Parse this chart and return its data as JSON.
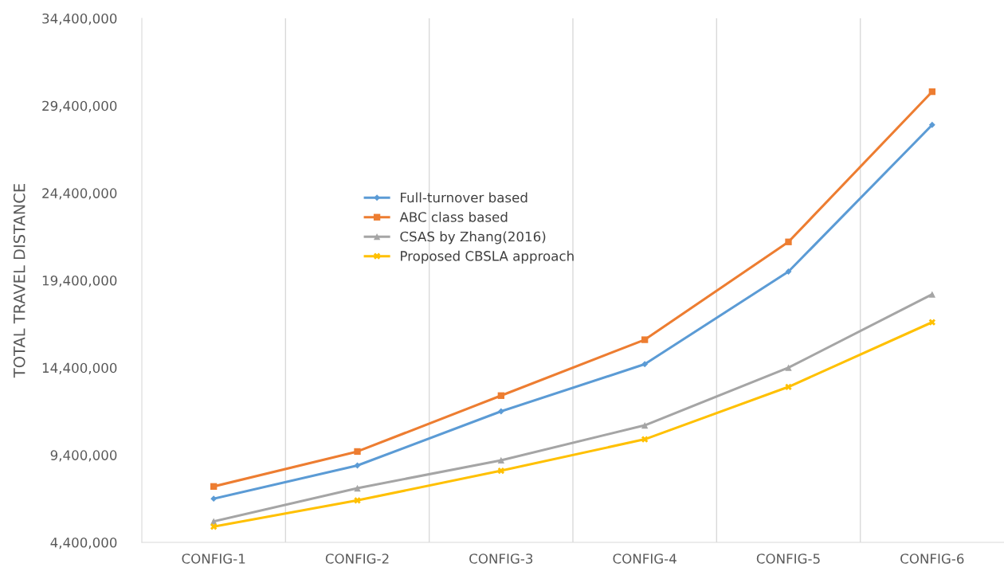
{
  "chart_data": {
    "type": "line",
    "ylabel": "TOTAL TRAVEL DISTANCE",
    "categories": [
      "CONFIG-1",
      "CONFIG-2",
      "CONFIG-3",
      "CONFIG-4",
      "CONFIG-5",
      "CONFIG-6"
    ],
    "series": [
      {
        "name": "Full-turnover based",
        "color": "#5b9bd5",
        "marker": "diamond",
        "values": [
          6900000,
          8800000,
          11900000,
          14600000,
          19900000,
          28300000
        ]
      },
      {
        "name": "ABC class based",
        "color": "#ed7d31",
        "marker": "square",
        "values": [
          7600000,
          9600000,
          12800000,
          16000000,
          21600000,
          30200000
        ]
      },
      {
        "name": "CSAS by Zhang(2016)",
        "color": "#a5a5a5",
        "marker": "triangle",
        "values": [
          5600000,
          7500000,
          9100000,
          11100000,
          14400000,
          18600000
        ]
      },
      {
        "name": "Proposed CBSLA approach",
        "color": "#ffc000",
        "marker": "cross",
        "values": [
          5300000,
          6800000,
          8500000,
          10300000,
          13300000,
          17000000
        ]
      }
    ],
    "ylim": [
      4400000,
      34400000
    ],
    "yticks": [
      {
        "value": 4400000,
        "label": "4,400,000"
      },
      {
        "value": 9400000,
        "label": "9,400,000"
      },
      {
        "value": 14400000,
        "label": "14,400,000"
      },
      {
        "value": 19400000,
        "label": "19,400,000"
      },
      {
        "value": 24400000,
        "label": "24,400,000"
      },
      {
        "value": 29400000,
        "label": "29,400,000"
      },
      {
        "value": 34400000,
        "label": "34,400,000"
      }
    ],
    "grid": "x",
    "legend": "center",
    "line_style": "solid"
  }
}
